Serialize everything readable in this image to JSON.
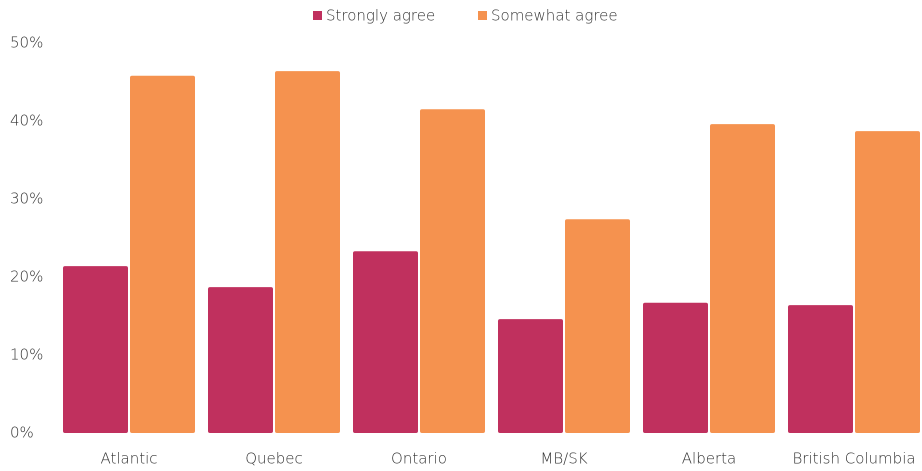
{
  "chart_data": {
    "type": "bar",
    "categories": [
      "Atlantic",
      "Quebec",
      "Ontario",
      "MB/SK",
      "Alberta",
      "British Columbia"
    ],
    "series": [
      {
        "name": "Strongly agree",
        "color": "#c0305e",
        "values": [
          21.4,
          18.7,
          23.3,
          14.6,
          16.7,
          16.4
        ]
      },
      {
        "name": "Somewhat agree",
        "color": "#f5924f",
        "values": [
          45.8,
          46.4,
          41.5,
          27.4,
          39.6,
          38.7
        ]
      }
    ],
    "ylim": [
      0,
      50
    ],
    "yticks": [
      {
        "value": 0,
        "label": "0%"
      },
      {
        "value": 10,
        "label": "10%"
      },
      {
        "value": 20,
        "label": "20%"
      },
      {
        "value": 30,
        "label": "30%"
      },
      {
        "value": 40,
        "label": "40%"
      },
      {
        "value": 50,
        "label": "50%"
      }
    ],
    "grid": false,
    "legend": "top"
  }
}
